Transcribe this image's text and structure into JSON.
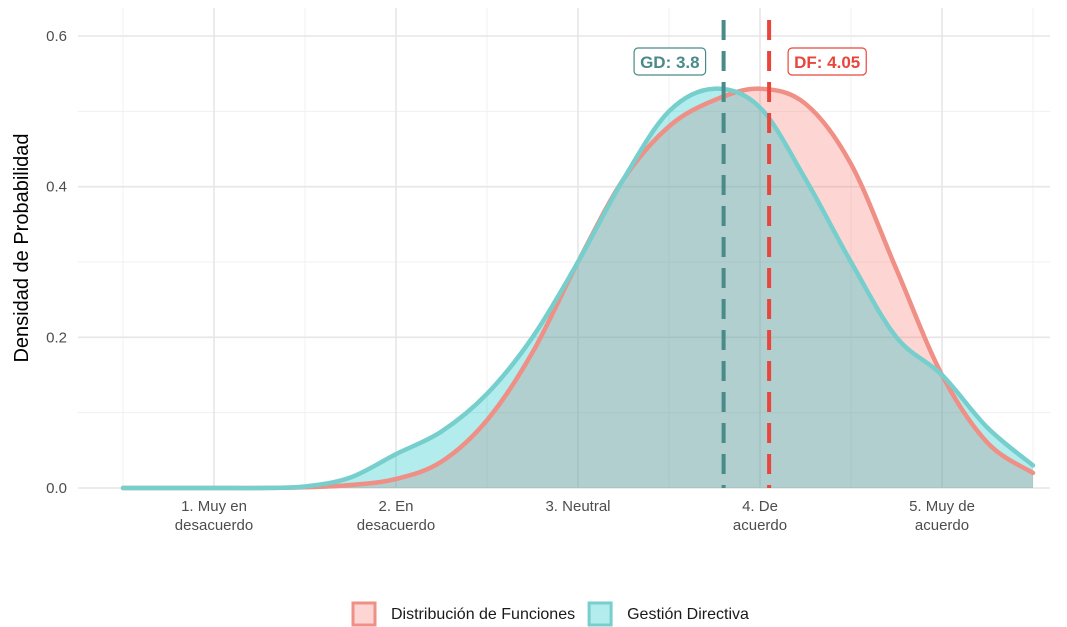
{
  "chart_data": {
    "type": "area",
    "title": "",
    "xlabel": "",
    "ylabel": "Densidad de Probabilidad",
    "xlim": [
      0.5,
      5.5
    ],
    "ylim": [
      0,
      0.6
    ],
    "x_ticks": [
      {
        "value": 1,
        "label": [
          "1. Muy en",
          "desacuerdo"
        ]
      },
      {
        "value": 2,
        "label": [
          "2. En",
          "desacuerdo"
        ]
      },
      {
        "value": 3,
        "label": [
          "3. Neutral"
        ]
      },
      {
        "value": 4,
        "label": [
          "4. De",
          "acuerdo"
        ]
      },
      {
        "value": 5,
        "label": [
          "5. Muy de",
          "acuerdo"
        ]
      }
    ],
    "y_ticks": [
      0,
      0.2,
      0.4,
      0.6
    ],
    "y_tick_labels": [
      "0.0",
      "0.2",
      "0.4",
      "0.6"
    ],
    "grid": true,
    "legend_position": "bottom",
    "series": [
      {
        "name": "Distribución de Funciones",
        "line_color": "#f08f85",
        "fill_color": "#f8766d",
        "mean": 4.05,
        "annotation": "DF: 4.05",
        "annotation_color": "#e8463c",
        "x": [
          0.5,
          0.75,
          1.0,
          1.25,
          1.5,
          1.75,
          2.0,
          2.25,
          2.5,
          2.75,
          3.0,
          3.25,
          3.5,
          3.75,
          4.0,
          4.25,
          4.5,
          4.75,
          5.0,
          5.25,
          5.5
        ],
        "y": [
          0.0,
          0.0,
          0.0,
          0.0,
          0.001,
          0.004,
          0.012,
          0.035,
          0.09,
          0.18,
          0.3,
          0.41,
          0.48,
          0.515,
          0.53,
          0.51,
          0.43,
          0.29,
          0.15,
          0.06,
          0.02
        ]
      },
      {
        "name": "Gestión Directiva",
        "line_color": "#76cfcc",
        "fill_color": "#00bfc4",
        "mean": 3.8,
        "annotation": "GD: 3.8",
        "annotation_color": "#4a8a88",
        "x": [
          0.5,
          0.75,
          1.0,
          1.25,
          1.5,
          1.75,
          2.0,
          2.25,
          2.5,
          2.75,
          3.0,
          3.25,
          3.5,
          3.75,
          4.0,
          4.25,
          4.5,
          4.75,
          5.0,
          5.25,
          5.5
        ],
        "y": [
          0.0,
          0.0,
          0.0,
          0.0,
          0.002,
          0.014,
          0.045,
          0.075,
          0.125,
          0.2,
          0.3,
          0.41,
          0.5,
          0.53,
          0.505,
          0.41,
          0.3,
          0.2,
          0.15,
          0.08,
          0.03
        ]
      }
    ]
  }
}
